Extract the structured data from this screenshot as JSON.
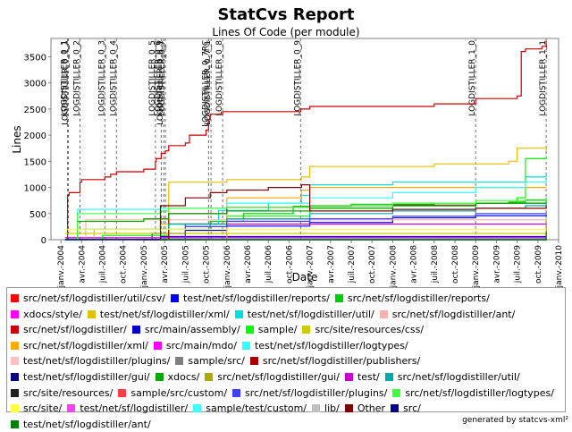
{
  "page": {
    "footer": "generated by statcvs-xml²"
  },
  "chart_data": {
    "type": "line",
    "title": "StatCvs Report",
    "subtitle": "Lines Of Code (per module)",
    "xlabel": "Date",
    "ylabel": "Lines",
    "xlim": [
      2003.88,
      2010.0
    ],
    "ylim": [
      0,
      3850
    ],
    "yticks": [
      0,
      500,
      1000,
      1500,
      2000,
      2500,
      3000,
      3500
    ],
    "xticks": [
      {
        "label": "janv.-2004",
        "x": 2004.0
      },
      {
        "label": "avr.-2004",
        "x": 2004.25
      },
      {
        "label": "juil.-2004",
        "x": 2004.5
      },
      {
        "label": "oct.-2004",
        "x": 2004.75
      },
      {
        "label": "janv.-2005",
        "x": 2005.0
      },
      {
        "label": "avr.-2005",
        "x": 2005.25
      },
      {
        "label": "juil.-2005",
        "x": 2005.5
      },
      {
        "label": "oct.-2005",
        "x": 2005.75
      },
      {
        "label": "janv.-2006",
        "x": 2006.0
      },
      {
        "label": "avr.-2006",
        "x": 2006.25
      },
      {
        "label": "juil.-2006",
        "x": 2006.5
      },
      {
        "label": "oct.-2006",
        "x": 2006.75
      },
      {
        "label": "janv.-2007",
        "x": 2007.0
      },
      {
        "label": "avr.-2007",
        "x": 2007.25
      },
      {
        "label": "juil.-2007",
        "x": 2007.5
      },
      {
        "label": "oct.-2007",
        "x": 2007.75
      },
      {
        "label": "janv.-2008",
        "x": 2008.0
      },
      {
        "label": "avr.-2008",
        "x": 2008.25
      },
      {
        "label": "juil.-2008",
        "x": 2008.5
      },
      {
        "label": "oct.-2008",
        "x": 2008.75
      },
      {
        "label": "janv.-2009",
        "x": 2009.0
      },
      {
        "label": "avr.-2009",
        "x": 2009.25
      },
      {
        "label": "juil.-2009",
        "x": 2009.5
      },
      {
        "label": "oct.-2009",
        "x": 2009.75
      },
      {
        "label": "janv.-2010",
        "x": 2010.0
      }
    ],
    "markers": [
      {
        "label": "LOGDISTILLER_0_1",
        "x": 2004.08
      },
      {
        "label": "LOGDISTILLER_0_1_1",
        "x": 2004.09
      },
      {
        "label": "LOGDISTILLER_0_2",
        "x": 2004.23
      },
      {
        "label": "LOGDISTILLER_0_3",
        "x": 2004.53
      },
      {
        "label": "LOGDISTILLER_0_4",
        "x": 2004.67
      },
      {
        "label": "LOGDISTILLER_0_5",
        "x": 2005.14
      },
      {
        "label": "LOGDISTILLER_0_6",
        "x": 2005.21
      },
      {
        "label": "LOGDISTILLER_0_6_1",
        "x": 2005.24
      },
      {
        "label": "LOGDISTILLER_0_7",
        "x": 2005.26
      },
      {
        "label": "LOGDISTILLER_0_7RC",
        "x": 2005.78
      },
      {
        "label": "LOGDISTILLER_0_7_1",
        "x": 2005.81
      },
      {
        "label": "LOGDISTILLER_0_8",
        "x": 2005.95
      },
      {
        "label": "LOGDISTILLER_0_9",
        "x": 2006.89
      },
      {
        "label": "LOGDISTILLER_1_0",
        "x": 2009.0
      },
      {
        "label": "LOGDISTILLER_1_1",
        "x": 2009.85
      }
    ],
    "series": [
      {
        "name": "src/net/sf/logdistiller/util/csv/",
        "color": "#ff0000",
        "x": [],
        "y": []
      },
      {
        "name": "test/net/sf/logdistiller/reports/",
        "color": "#0000ff",
        "x": [
          2004.9,
          2005.1,
          2005.5,
          2006.0,
          2007.0,
          2008.0,
          2009.0,
          2009.85
        ],
        "y": [
          0,
          120,
          180,
          260,
          330,
          420,
          460,
          480
        ]
      },
      {
        "name": "src/net/sf/logdistiller/reports/",
        "color": "#00cc00",
        "x": [
          2005.1,
          2005.3,
          2005.8,
          2006.2,
          2006.8,
          2007.5,
          2008.5,
          2009.4,
          2009.6,
          2009.85
        ],
        "y": [
          0,
          200,
          350,
          500,
          640,
          680,
          700,
          720,
          760,
          800
        ]
      },
      {
        "name": "xdocs/style/",
        "color": "#ff00ff",
        "x": [
          2004.05,
          2009.85
        ],
        "y": [
          40,
          40
        ]
      },
      {
        "name": "test/net/sf/logdistiller/xml/",
        "color": "#e6c000",
        "x": [
          2004.05,
          2004.4,
          2005.2,
          2005.3,
          2006.0,
          2006.9,
          2007.0,
          2008.5,
          2009.4,
          2009.5,
          2009.85
        ],
        "y": [
          0,
          200,
          300,
          1100,
          1150,
          1200,
          1400,
          1450,
          1500,
          1750,
          1700
        ]
      },
      {
        "name": "test/net/sf/logdistiller/util/",
        "color": "#00e0e0",
        "x": [
          2005.2,
          2005.3,
          2005.9,
          2006.5,
          2006.9,
          2007.0,
          2008.0,
          2009.0,
          2009.6,
          2009.85
        ],
        "y": [
          0,
          300,
          560,
          700,
          850,
          1050,
          1100,
          1100,
          1200,
          1250
        ]
      },
      {
        "name": "src/net/sf/logdistiller/ant/",
        "color": "#ffafaf",
        "x": [
          2004.05,
          2004.3,
          2009.85
        ],
        "y": [
          0,
          380,
          380
        ]
      },
      {
        "name": "src/net/sf/logdistiller/",
        "color": "#cc0000",
        "x": [
          2004.05,
          2004.08,
          2004.1,
          2004.23,
          2004.25,
          2004.53,
          2004.6,
          2004.67,
          2005.0,
          2005.14,
          2005.15,
          2005.21,
          2005.26,
          2005.3,
          2005.5,
          2005.55,
          2005.75,
          2005.78,
          2005.8,
          2005.95,
          2006.0,
          2006.89,
          2007.0,
          2008.5,
          2009.0,
          2009.5,
          2009.55,
          2009.6,
          2009.8,
          2009.85
        ],
        "y": [
          0,
          850,
          900,
          1100,
          1150,
          1200,
          1250,
          1300,
          1350,
          1500,
          1550,
          1650,
          1700,
          1800,
          1850,
          2000,
          2100,
          2300,
          2400,
          2450,
          2450,
          2500,
          2550,
          2600,
          2700,
          2750,
          3600,
          3650,
          3700,
          3800
        ]
      },
      {
        "name": "src/main/assembly/",
        "color": "#0000cc",
        "x": [
          2005.2,
          2009.85
        ],
        "y": [
          60,
          60
        ]
      },
      {
        "name": "sample/",
        "color": "#00ff00",
        "x": [
          2004.05,
          2004.5,
          2005.3,
          2006.0,
          2007.0,
          2008.0,
          2009.0,
          2009.5,
          2009.6,
          2009.85
        ],
        "y": [
          0,
          80,
          300,
          450,
          600,
          650,
          700,
          800,
          1550,
          1600
        ]
      },
      {
        "name": "src/site/resources/css/",
        "color": "#cccc00",
        "x": [
          2004.05,
          2009.85
        ],
        "y": [
          120,
          120
        ]
      },
      {
        "name": "src/net/sf/logdistiller/xml/",
        "color": "#ffaa00",
        "x": [
          2005.3,
          2006.0,
          2006.9,
          2007.0,
          2009.85
        ],
        "y": [
          0,
          800,
          950,
          1000,
          1000
        ]
      },
      {
        "name": "src/main/mdo/",
        "color": "#ff00ff",
        "x": [
          2005.3,
          2009.85
        ],
        "y": [
          0,
          320
        ]
      },
      {
        "name": "test/net/sf/logdistiller/logtypes/",
        "color": "#33ffff",
        "x": [
          2004.05,
          2004.2,
          2005.2,
          2006.0,
          2007.0,
          2008.0,
          2009.0,
          2009.6,
          2009.85
        ],
        "y": [
          0,
          580,
          600,
          700,
          800,
          900,
          1000,
          1100,
          1150
        ]
      },
      {
        "name": "test/net/sf/logdistiller/plugins/",
        "color": "#ffc0c0",
        "x": [
          2005.3,
          2009.85
        ],
        "y": [
          0,
          160
        ]
      },
      {
        "name": "sample/src/",
        "color": "#808080",
        "x": [
          2005.2,
          2009.85
        ],
        "y": [
          0,
          70
        ]
      },
      {
        "name": "src/net/sf/logdistiller/publishers/",
        "color": "#aa0000",
        "x": [
          2005.2,
          2005.3,
          2006.0,
          2007.0,
          2008.0,
          2009.0,
          2009.85
        ],
        "y": [
          0,
          500,
          620,
          650,
          660,
          700,
          700
        ]
      },
      {
        "name": "test/net/sf/logdistiller/gui/",
        "color": "#000080",
        "x": [
          2005.3,
          2009.85
        ],
        "y": [
          0,
          60
        ]
      },
      {
        "name": "xdocs/",
        "color": "#00aa00",
        "x": [
          2004.05,
          2004.2,
          2005.0,
          2005.3,
          2006.0,
          2007.0,
          2008.0,
          2009.0,
          2009.85
        ],
        "y": [
          0,
          350,
          400,
          500,
          550,
          600,
          650,
          700,
          750
        ]
      },
      {
        "name": "src/net/sf/logdistiller/gui/",
        "color": "#aaaa00",
        "x": [
          2005.5,
          2009.85
        ],
        "y": [
          0,
          400
        ]
      },
      {
        "name": "test/",
        "color": "#cc00cc",
        "x": [
          2005.2,
          2005.5,
          2009.85
        ],
        "y": [
          0,
          300,
          300
        ]
      },
      {
        "name": "src/net/sf/logdistiller/util/",
        "color": "#00aaaa",
        "x": [
          2004.05,
          2004.2,
          2005.3,
          2006.0,
          2007.0,
          2008.0,
          2009.0,
          2009.6,
          2009.85
        ],
        "y": [
          0,
          200,
          300,
          400,
          500,
          550,
          600,
          650,
          700
        ]
      },
      {
        "name": "src/site/resources/",
        "color": "#202020",
        "x": [
          2004.05,
          2009.85
        ],
        "y": [
          10,
          10
        ]
      },
      {
        "name": "sample/src/custom/",
        "color": "#ff4040",
        "x": [
          2005.8,
          2009.85
        ],
        "y": [
          0,
          150
        ]
      },
      {
        "name": "src/net/sf/logdistiller/plugins/",
        "color": "#4040ff",
        "x": [
          2005.2,
          2005.5,
          2006.0,
          2007.0,
          2008.0,
          2009.0,
          2009.85
        ],
        "y": [
          0,
          250,
          350,
          400,
          450,
          500,
          520
        ]
      },
      {
        "name": "src/net/sf/logdistiller/logtypes/",
        "color": "#40ff40",
        "x": [
          2004.05,
          2004.2,
          2005.2,
          2005.3,
          2006.0,
          2007.0,
          2008.0,
          2009.0,
          2009.85
        ],
        "y": [
          0,
          500,
          550,
          600,
          620,
          650,
          700,
          750,
          780
        ]
      },
      {
        "name": "src/site/",
        "color": "#ffff40",
        "x": [
          2004.05,
          2009.85
        ],
        "y": [
          200,
          200
        ]
      },
      {
        "name": "test/net/sf/logdistiller/",
        "color": "#ff40ff",
        "x": [
          2005.3,
          2009.85
        ],
        "y": [
          0,
          30
        ]
      },
      {
        "name": "sample/test/custom/",
        "color": "#40ffff",
        "x": [
          2005.8,
          2009.85
        ],
        "y": [
          0,
          100
        ]
      },
      {
        "name": "lib/",
        "color": "#c0c0c0",
        "x": [
          2004.05,
          2009.85
        ],
        "y": [
          0,
          0
        ]
      },
      {
        "name": "Other",
        "color": "#800000",
        "x": [
          2005.0,
          2005.2,
          2005.5,
          2005.8,
          2006.0,
          2006.5,
          2006.9,
          2007.0,
          2008.0,
          2009.0,
          2009.85
        ],
        "y": [
          0,
          650,
          800,
          900,
          950,
          1000,
          1050,
          550,
          580,
          600,
          650
        ]
      },
      {
        "name": "src/",
        "color": "#000080",
        "x": [
          2004.05,
          2009.85
        ],
        "y": [
          0,
          20
        ]
      },
      {
        "name": "test/net/sf/logdistiller/ant/",
        "color": "#008000",
        "x": [
          2005.2,
          2009.85
        ],
        "y": [
          0,
          150
        ]
      }
    ]
  }
}
